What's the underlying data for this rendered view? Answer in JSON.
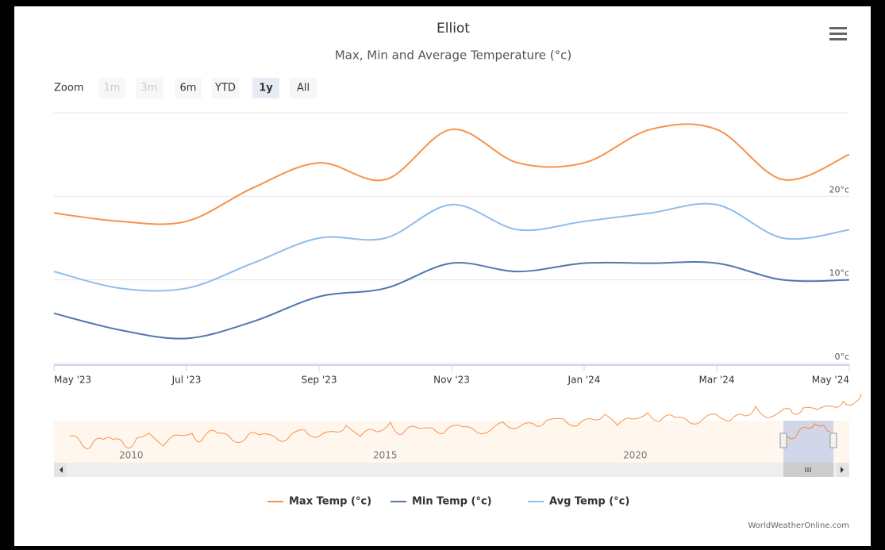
{
  "chart_data": {
    "type": "line",
    "title": "Elliot",
    "subtitle": "Max, Min and Average Temperature (°c)",
    "zoom": {
      "label": "Zoom",
      "buttons": [
        "1m",
        "3m",
        "6m",
        "YTD",
        "1y",
        "All"
      ],
      "selected": "1y",
      "disabled": [
        "1m",
        "3m"
      ]
    },
    "categories": [
      "May '23",
      null,
      "Jul '23",
      null,
      "Sep '23",
      null,
      "Nov '23",
      null,
      "Jan '24",
      null,
      "Mar '24",
      null,
      "May '24"
    ],
    "series": [
      {
        "name": "Max Temp (°c)",
        "color": "#f7924a",
        "values": [
          18,
          17,
          17,
          21,
          24,
          22,
          28,
          24,
          24,
          28,
          28,
          22,
          25
        ]
      },
      {
        "name": "Min Temp (°c)",
        "color": "#5177ae",
        "values": [
          6,
          4,
          3,
          5,
          8,
          9,
          12,
          11,
          12,
          12,
          12,
          10,
          10
        ]
      },
      {
        "name": "Avg Temp (°c)",
        "color": "#90bdea",
        "values": [
          11,
          9,
          9,
          12,
          15,
          15,
          19,
          16,
          17,
          18,
          19,
          15,
          16
        ]
      }
    ],
    "ylim": [
      0,
      30
    ],
    "yticks": [
      {
        "value": 0,
        "label": "0°c"
      },
      {
        "value": 10,
        "label": "10°c"
      },
      {
        "value": 20,
        "label": "20°c"
      }
    ],
    "grid": true,
    "legend": "bottom",
    "navigator": {
      "labels": [
        "2010",
        "2015",
        "2020"
      ]
    },
    "credit": "WorldWeatherOnline.com"
  }
}
